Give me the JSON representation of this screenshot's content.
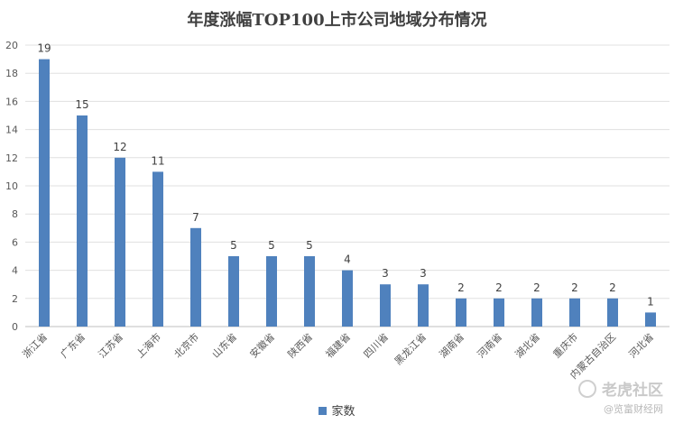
{
  "chart_data": {
    "type": "bar",
    "title": "年度涨幅TOP100上市公司地域分布情况",
    "xlabel": "",
    "ylabel": "",
    "ylim": [
      0,
      20
    ],
    "yticks": [
      0,
      2,
      4,
      6,
      8,
      10,
      12,
      14,
      16,
      18,
      20
    ],
    "grid": true,
    "legend_position": "bottom",
    "categories": [
      "浙江省",
      "广东省",
      "江苏省",
      "上海市",
      "北京市",
      "山东省",
      "安徽省",
      "陕西省",
      "福建省",
      "四川省",
      "黑龙江省",
      "湖南省",
      "河南省",
      "湖北省",
      "重庆市",
      "内蒙古自治区",
      "河北省"
    ],
    "series": [
      {
        "name": "家数",
        "values": [
          19,
          15,
          12,
          11,
          7,
          5,
          5,
          5,
          4,
          3,
          3,
          2,
          2,
          2,
          2,
          2,
          1
        ],
        "color": "#4f81bd"
      }
    ]
  },
  "watermark": {
    "brand": "老虎社区",
    "source": "@览富财经网"
  }
}
